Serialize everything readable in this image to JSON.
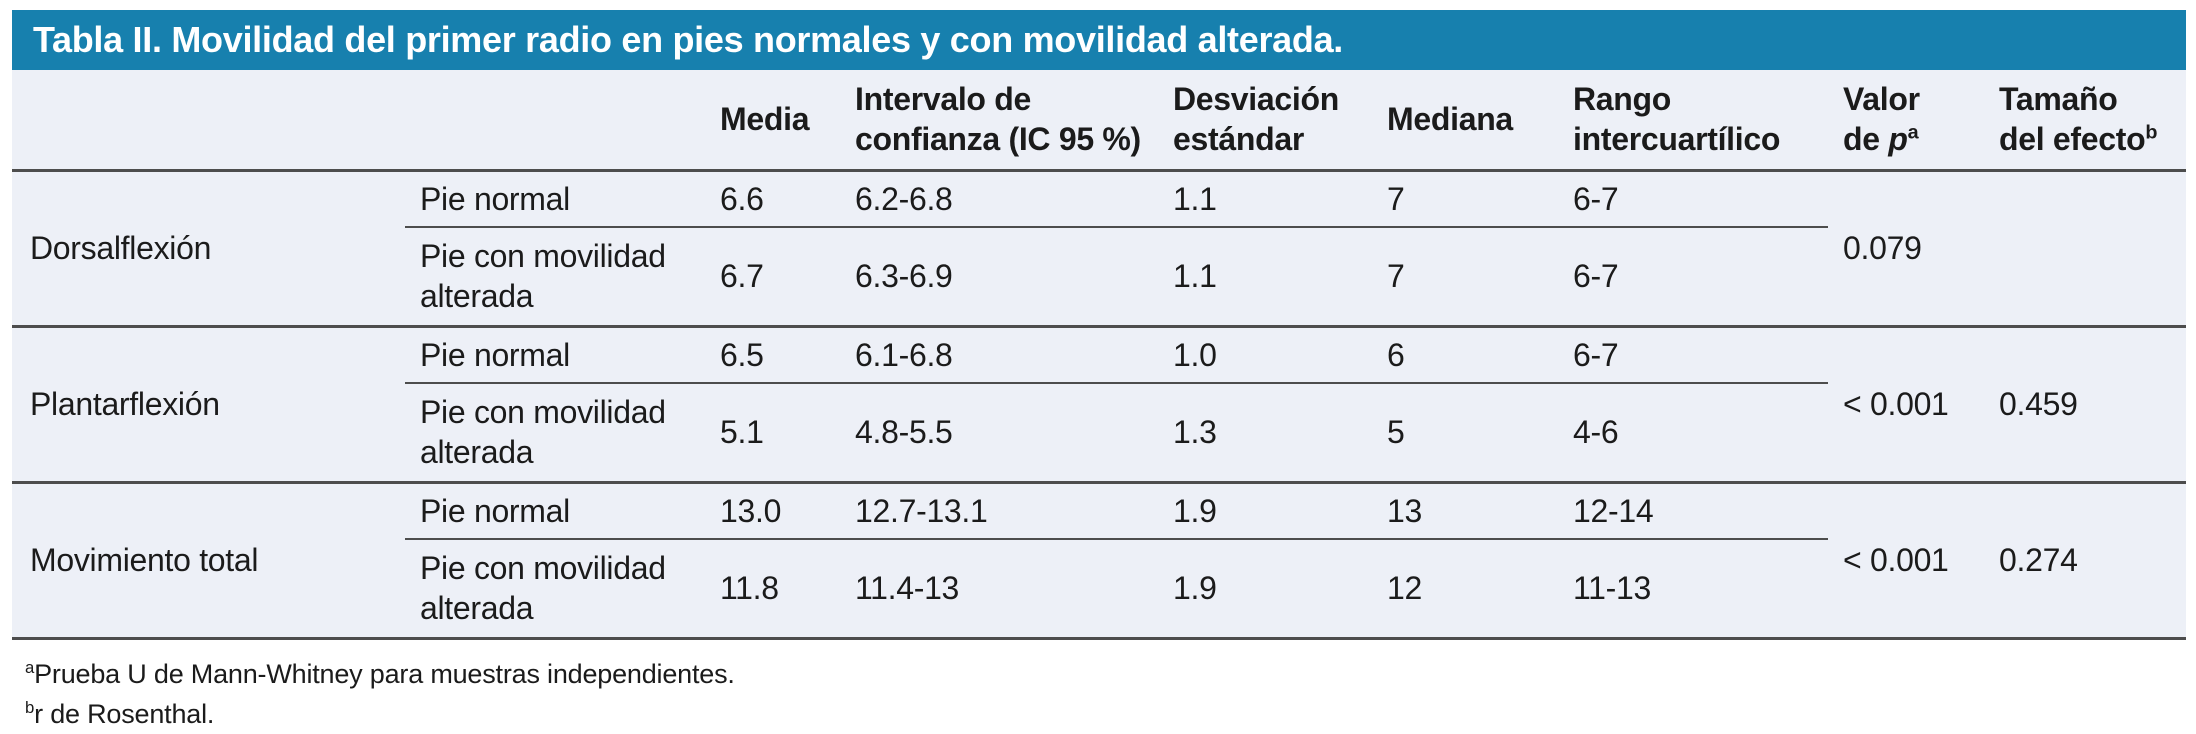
{
  "title": "Tabla II. Movilidad del primer radio en pies normales y con movilidad alterada.",
  "colors": {
    "title_bar_bg": "#1780ae",
    "title_text": "#ffffff",
    "table_bg": "#edf0f7",
    "border": "#4d4d4d",
    "text": "#1b1b1b"
  },
  "header": {
    "media": "Media",
    "ic_line1": "Intervalo de",
    "ic_line2": "confianza (IC 95 %)",
    "sd_line1": "Desviación",
    "sd_line2": "estándar",
    "mediana": "Mediana",
    "rango_line1": "Rango",
    "rango_line2": "intercuartílico",
    "valor_line1": "Valor",
    "valor_de": "de",
    "valor_p": "p",
    "valor_sup": "a",
    "tamano_line1": "Tamaño",
    "tamano_line2": "del efecto",
    "tamano_sup": "b"
  },
  "groups": [
    {
      "label": "Dorsalflexión",
      "rows": [
        {
          "condition": "Pie normal",
          "media": "6.6",
          "ic": "6.2-6.8",
          "sd": "1.1",
          "mediana": "7",
          "rango": "6-7"
        },
        {
          "condition": "Pie con movilidad alterada",
          "media": "6.7",
          "ic": "6.3-6.9",
          "sd": "1.1",
          "mediana": "7",
          "rango": "6-7"
        }
      ],
      "p_value": "0.079",
      "effect_size": ""
    },
    {
      "label": "Plantarflexión",
      "rows": [
        {
          "condition": "Pie normal",
          "media": "6.5",
          "ic": "6.1-6.8",
          "sd": "1.0",
          "mediana": "6",
          "rango": "6-7"
        },
        {
          "condition": "Pie con movilidad alterada",
          "media": "5.1",
          "ic": "4.8-5.5",
          "sd": "1.3",
          "mediana": "5",
          "rango": "4-6"
        }
      ],
      "p_value": "< 0.001",
      "effect_size": "0.459"
    },
    {
      "label": "Movimiento total",
      "rows": [
        {
          "condition": "Pie normal",
          "media": "13.0",
          "ic": "12.7-13.1",
          "sd": "1.9",
          "mediana": "13",
          "rango": "12-14"
        },
        {
          "condition": "Pie con movilidad alterada",
          "media": "11.8",
          "ic": "11.4-13",
          "sd": "1.9",
          "mediana": "12",
          "rango": "11-13"
        }
      ],
      "p_value": "< 0.001",
      "effect_size": "0.274"
    }
  ],
  "footnotes": [
    {
      "sup": "a",
      "text": "Prueba U de Mann-Whitney para muestras independientes."
    },
    {
      "sup": "b",
      "text": "r de Rosenthal."
    }
  ]
}
